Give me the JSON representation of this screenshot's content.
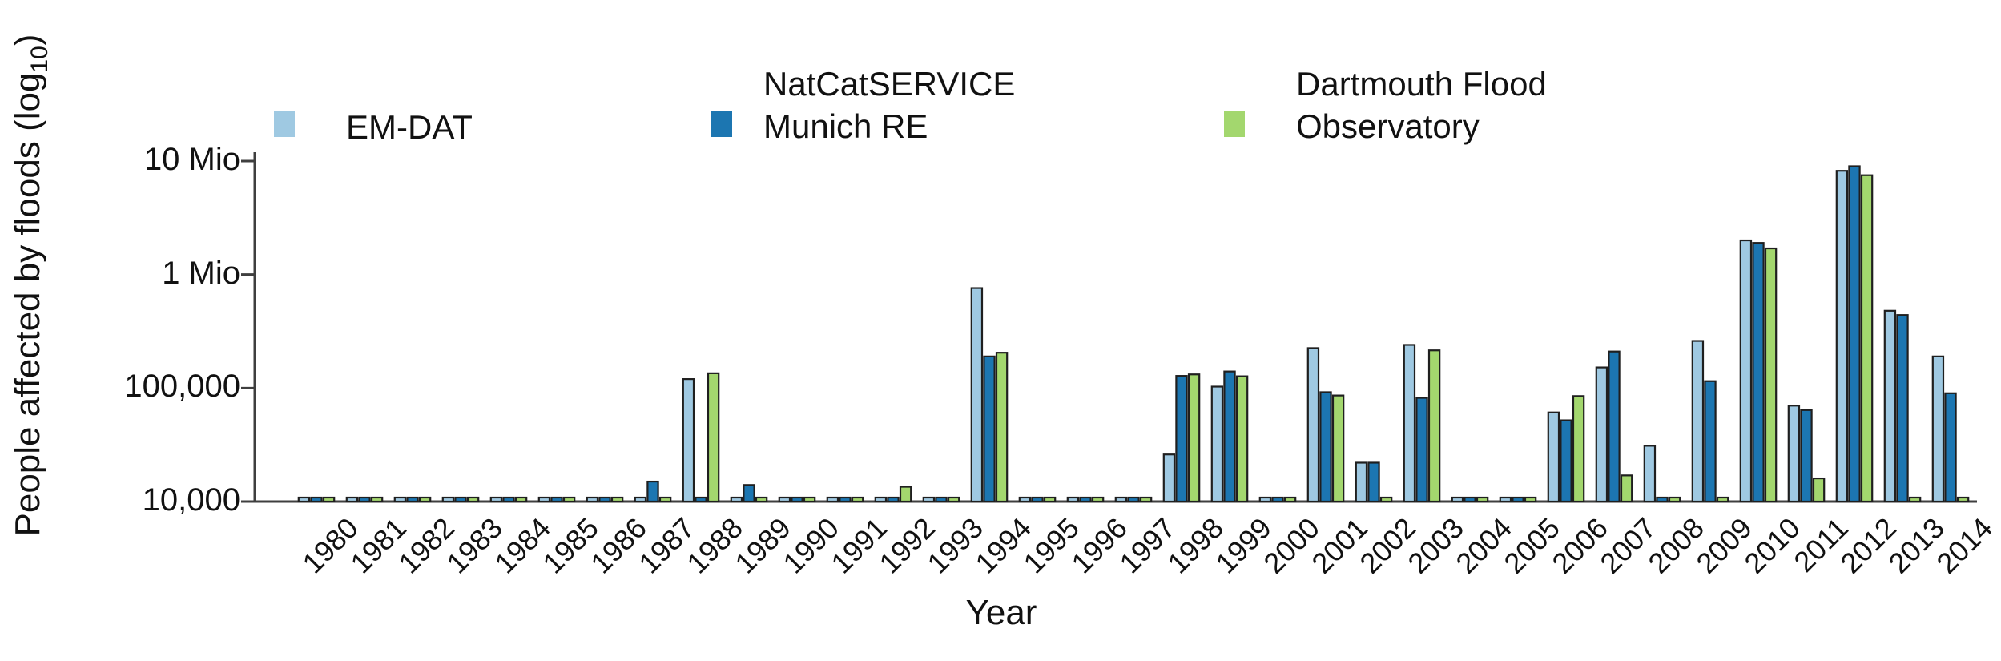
{
  "figure": {
    "xlabel": "Year",
    "ylabel_pre": "People affected by floods (log",
    "ylabel_sub": "10",
    "ylabel_post": ")",
    "legend": [
      {
        "line1": "EM-DAT",
        "line2": ""
      },
      {
        "line1": "NatCatSERVICE",
        "line2": "Munich RE"
      },
      {
        "line1": "Dartmouth Flood",
        "line2": "Observatory"
      }
    ]
  },
  "chart_data": {
    "type": "bar",
    "title": "",
    "xlabel": "Year",
    "ylabel": "People affected by floods (log10)",
    "y_scale": "log10",
    "ylim": [
      10000,
      10000000
    ],
    "grid": false,
    "legend_position": "top",
    "null_meaning": "no bar / value at or below axis minimum of 10,000 (drawn as a flat dash on the baseline)",
    "axis_color": "#3f3f3f",
    "bar_outline_color": "#1f1f1f",
    "categories": [
      1980,
      1981,
      1982,
      1983,
      1984,
      1985,
      1986,
      1987,
      1988,
      1989,
      1990,
      1991,
      1992,
      1993,
      1994,
      1995,
      1996,
      1997,
      1998,
      1999,
      2000,
      2001,
      2002,
      2003,
      2004,
      2005,
      2006,
      2007,
      2008,
      2009,
      2010,
      2011,
      2012,
      2013,
      2014
    ],
    "yticks": [
      {
        "label": "10 Mio",
        "value": 10000000
      },
      {
        "label": "1 Mio",
        "value": 1000000
      },
      {
        "label": "100,000",
        "value": 100000
      },
      {
        "label": "10,000",
        "value": 10000
      }
    ],
    "series": [
      {
        "name": "EM-DAT",
        "color": "#9fc9e2",
        "values": [
          null,
          null,
          null,
          null,
          null,
          null,
          null,
          null,
          120000,
          null,
          null,
          null,
          null,
          null,
          760000,
          null,
          null,
          null,
          26000,
          103000,
          null,
          225000,
          22000,
          240000,
          null,
          null,
          61000,
          152000,
          31000,
          260000,
          2000000,
          70000,
          8200000,
          480000,
          190000
        ]
      },
      {
        "name": "NatCatSERVICE Munich RE",
        "color": "#1c76b1",
        "values": [
          null,
          null,
          null,
          null,
          null,
          null,
          null,
          15000,
          null,
          14000,
          null,
          null,
          null,
          null,
          190000,
          null,
          null,
          null,
          128000,
          140000,
          null,
          92000,
          22000,
          82000,
          null,
          null,
          52000,
          210000,
          null,
          115000,
          1900000,
          64000,
          9000000,
          440000,
          90000
        ]
      },
      {
        "name": "Dartmouth Flood Observatory",
        "color": "#a3d76e",
        "values": [
          null,
          null,
          null,
          null,
          null,
          null,
          null,
          null,
          135000,
          null,
          null,
          null,
          13500,
          null,
          205000,
          null,
          null,
          null,
          132000,
          127000,
          null,
          86000,
          null,
          215000,
          null,
          null,
          85000,
          17000,
          null,
          null,
          1700000,
          16000,
          7500000,
          null,
          null
        ]
      }
    ]
  }
}
